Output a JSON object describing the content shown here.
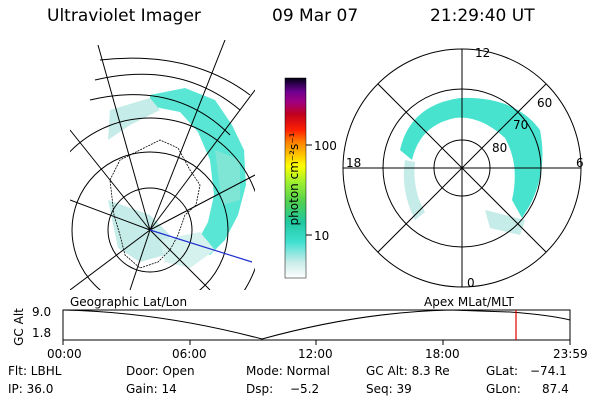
{
  "header": {
    "instrument": "Ultraviolet Imager",
    "date": "09 Mar 07",
    "time": "21:29:40 UT"
  },
  "colorbar": {
    "unit_label": "photon cm⁻²s⁻¹",
    "ticks": [
      "100",
      "10"
    ]
  },
  "polar_plot": {
    "mlt_labels": [
      "12",
      "18",
      "6",
      "0"
    ],
    "lat_labels": [
      "60",
      "70",
      "80"
    ]
  },
  "timeline": {
    "left_label": "Geographic Lat/Lon",
    "right_label": "Apex MLat/MLT",
    "y_axis_label": "GC Alt",
    "y_ticks": [
      "9.0",
      "1.8"
    ],
    "x_ticks": [
      "00:00",
      "06:00",
      "12:00",
      "18:00",
      "23:59"
    ],
    "marker_color": "#e00000"
  },
  "info": {
    "filter": "Flt: LBHL",
    "ip": "IP: 36.0",
    "door": "Door: Open",
    "gain": "Gain: 14",
    "mode": "Mode: Normal",
    "dsp_label": "Dsp:",
    "dsp_value": "−5.2",
    "gc_alt": "GC Alt: 8.3 Re",
    "seq": "Seq: 39",
    "glat_label": "GLat:",
    "glat_value": "−74.1",
    "glon_label": "GLon:",
    "glon_value": "87.4"
  }
}
